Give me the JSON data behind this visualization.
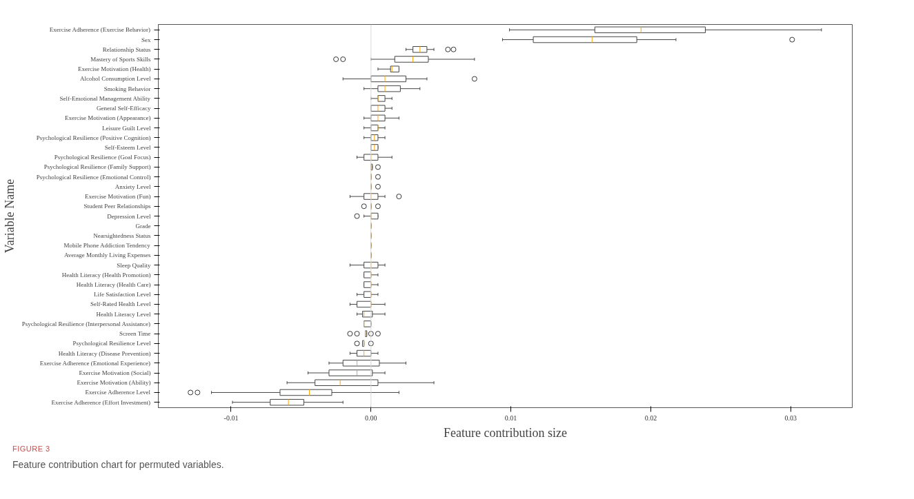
{
  "chart_data": {
    "type": "box",
    "orientation": "horizontal",
    "xlabel": "Feature contribution size",
    "ylabel": "Variable Name",
    "annotations": [
      "FIGURE 3",
      "Feature contribution chart for permuted variables."
    ],
    "categories": [
      "Exercise Adherence (Exercise Behavior)",
      "Sex",
      "Relationship Status",
      "Mastery of Sports Skills",
      "Exercise Motivation (Health)",
      "Alcohol Consumption Level",
      "Smoking Behavior",
      "Self-Emotional Management Ability",
      "General Self-Efficacy",
      "Exercise Motivation (Appearance)",
      "Leisure Guilt Level",
      "Psychological Resilience (Positive Cognition)",
      "Self-Esteem Level",
      "Psychological Resilience (Goal Focus)",
      "Psychological Resilience (Family Support)",
      "Psychological Resilience (Emotional Control)",
      "Anxiety Level",
      "Exercise Motivation (Fun)",
      "Student Peer Relationships",
      "Depression Level",
      "Grade",
      "Nearsightedness Status",
      "Mobile Phone Addiction Tendency",
      "Average Monthly Living Expenses",
      "Sleep Quality",
      "Health Literacy (Health Promotion)",
      "Health Literacy (Health Care)",
      "Life Satisfaction Level",
      "Self-Rated Health Level",
      "Health Literacy Level",
      "Psychological Resilience (Interpersonal Assistance)",
      "Screen Time",
      "Psychological Resilience Level",
      "Health Literacy (Disease Prevention)",
      "Exercise Adherence (Emotional Experience)",
      "Exercise Motivation (Social)",
      "Exercise Motivation (Ability)",
      "Exercise Adherence Level",
      "Exercise Adherence (Effort Investment)"
    ],
    "series": [
      {
        "color": "#444444",
        "boxes": [
          {
            "low": 0.0099,
            "q1": 0.016,
            "median": 0.0193,
            "q3": 0.0239,
            "high": 0.0322
          },
          {
            "low": 0.0094,
            "q1": 0.0116,
            "median": 0.0158,
            "q3": 0.019,
            "high": 0.0218,
            "outliers": [
              0.0301
            ]
          },
          {
            "low": 0.0025,
            "q1": 0.003,
            "median": 0.0035,
            "q3": 0.004,
            "high": 0.0045,
            "outliers": [
              0.0055,
              0.0059
            ]
          },
          {
            "low": 0.0,
            "q1": 0.0017,
            "median": 0.003,
            "q3": 0.0041,
            "high": 0.0074,
            "outliers": [
              -0.0025,
              -0.002
            ]
          },
          {
            "low": 0.0005,
            "q1": 0.0014,
            "median": 0.0015,
            "q3": 0.002,
            "high": 0.002
          },
          {
            "low": -0.002,
            "q1": 0.0,
            "median": 0.001,
            "q3": 0.0025,
            "high": 0.004,
            "outliers": [
              0.0074
            ]
          },
          {
            "low": -0.0005,
            "q1": 0.0005,
            "median": 0.001,
            "q3": 0.0021,
            "high": 0.0035
          },
          {
            "low": 0.0,
            "q1": 0.0005,
            "median": 0.0005,
            "q3": 0.001,
            "high": 0.0015
          },
          {
            "low": 0.0,
            "q1": 0.0,
            "median": 0.0005,
            "q3": 0.001,
            "high": 0.0015
          },
          {
            "low": -0.0005,
            "q1": 0.0,
            "median": 0.0005,
            "q3": 0.001,
            "high": 0.002
          },
          {
            "low": -0.0005,
            "q1": 0.0,
            "median": 0.0005,
            "q3": 0.0005,
            "high": 0.001
          },
          {
            "low": -0.0005,
            "q1": 0.0,
            "median": 0.00025,
            "q3": 0.0005,
            "high": 0.001
          },
          {
            "low": 0.0,
            "q1": 0.0,
            "median": 0.00025,
            "q3": 0.0005,
            "high": 0.0005
          },
          {
            "low": -0.001,
            "q1": -0.0005,
            "median": 0.0,
            "q3": 0.0005,
            "high": 0.0015
          },
          {
            "low": 0.0,
            "q1": 0.0,
            "median": 0.0,
            "q3": 0.0001,
            "high": 0.0001,
            "outliers": [
              0.0005
            ]
          },
          {
            "low": 0.0,
            "q1": 0.0,
            "median": 0.0,
            "q3": 0.0,
            "high": 0.0,
            "outliers": [
              0.0005
            ]
          },
          {
            "low": 0.0,
            "q1": 0.0,
            "median": 0.0,
            "q3": 0.0,
            "high": 0.0,
            "outliers": [
              0.0005
            ]
          },
          {
            "low": -0.0015,
            "q1": -0.0005,
            "median": 0.0,
            "q3": 0.0005,
            "high": 0.001,
            "outliers": [
              0.002
            ]
          },
          {
            "low": 0.0,
            "q1": 0.0,
            "median": 0.0,
            "q3": 0.0,
            "high": 0.0,
            "outliers": [
              -0.0005,
              0.0005
            ]
          },
          {
            "low": -0.0005,
            "q1": 0.0,
            "median": 0.0,
            "q3": 0.0005,
            "high": 0.0005,
            "outliers": [
              -0.001
            ]
          },
          {
            "low": 0.0,
            "q1": 0.0,
            "median": 0.0,
            "q3": 0.0,
            "high": 0.0
          },
          {
            "low": 0.0,
            "q1": 0.0,
            "median": 0.0,
            "q3": 0.0,
            "high": 0.0
          },
          {
            "low": 0.0,
            "q1": 0.0,
            "median": 0.0,
            "q3": 0.0,
            "high": 0.0
          },
          {
            "low": 0.0,
            "q1": 0.0,
            "median": 0.0,
            "q3": 0.0,
            "high": 0.0
          },
          {
            "low": -0.0015,
            "q1": -0.0005,
            "median": 0.0,
            "q3": 0.0005,
            "high": 0.001
          },
          {
            "low": -0.0005,
            "q1": -0.0005,
            "median": 0.0,
            "q3": 0.0,
            "high": 0.0005
          },
          {
            "low": -0.0005,
            "q1": -0.0005,
            "median": 0.0,
            "q3": 0.0,
            "high": 0.0005
          },
          {
            "low": -0.001,
            "q1": -0.0005,
            "median": 0.0,
            "q3": 0.0,
            "high": 0.0005
          },
          {
            "low": -0.0015,
            "q1": -0.001,
            "median": 0.0,
            "q3": 0.0,
            "high": 0.001
          },
          {
            "low": -0.001,
            "q1": -0.0006,
            "median": -0.0005,
            "q3": 0.0001,
            "high": 0.001
          },
          {
            "low": -0.0005,
            "q1": -0.0005,
            "median": -0.0005,
            "q3": 0.0,
            "high": 0.0
          },
          {
            "low": -0.0004,
            "q1": -0.0004,
            "median": -0.0004,
            "q3": -0.0003,
            "high": -0.0003,
            "outliers": [
              -0.0015,
              -0.001,
              0.0,
              0.0005
            ]
          },
          {
            "low": -0.0006,
            "q1": -0.0006,
            "median": -0.0005,
            "q3": -0.0005,
            "high": -0.0005,
            "outliers": [
              -0.001,
              0.0
            ]
          },
          {
            "low": -0.0015,
            "q1": -0.001,
            "median": -0.0005,
            "q3": 0.0,
            "high": 0.0005
          },
          {
            "low": -0.003,
            "q1": -0.002,
            "median": -0.001,
            "q3": 0.0006,
            "high": 0.0025
          },
          {
            "low": -0.0045,
            "q1": -0.003,
            "median": -0.001,
            "q3": 0.0001,
            "high": 0.001
          },
          {
            "low": -0.006,
            "q1": -0.004,
            "median": -0.0022,
            "q3": 0.0005,
            "high": 0.0045
          },
          {
            "low": -0.0114,
            "q1": -0.0065,
            "median": -0.0044,
            "q3": -0.0028,
            "high": 0.002,
            "outliers": [
              -0.0129,
              -0.0124
            ]
          },
          {
            "low": -0.0099,
            "q1": -0.0072,
            "median": -0.0059,
            "q3": -0.0048,
            "high": -0.002
          }
        ]
      }
    ],
    "xlim": [
      -0.0152,
      0.0344
    ],
    "xticks": [
      -0.01,
      {
        "value": 0,
        "label": "0.00"
      },
      0.01,
      0.02,
      0.03
    ],
    "ref_lines": [
      {
        "axis": "x",
        "value": 0,
        "color": "#d9d9d9"
      }
    ],
    "grid": false
  }
}
